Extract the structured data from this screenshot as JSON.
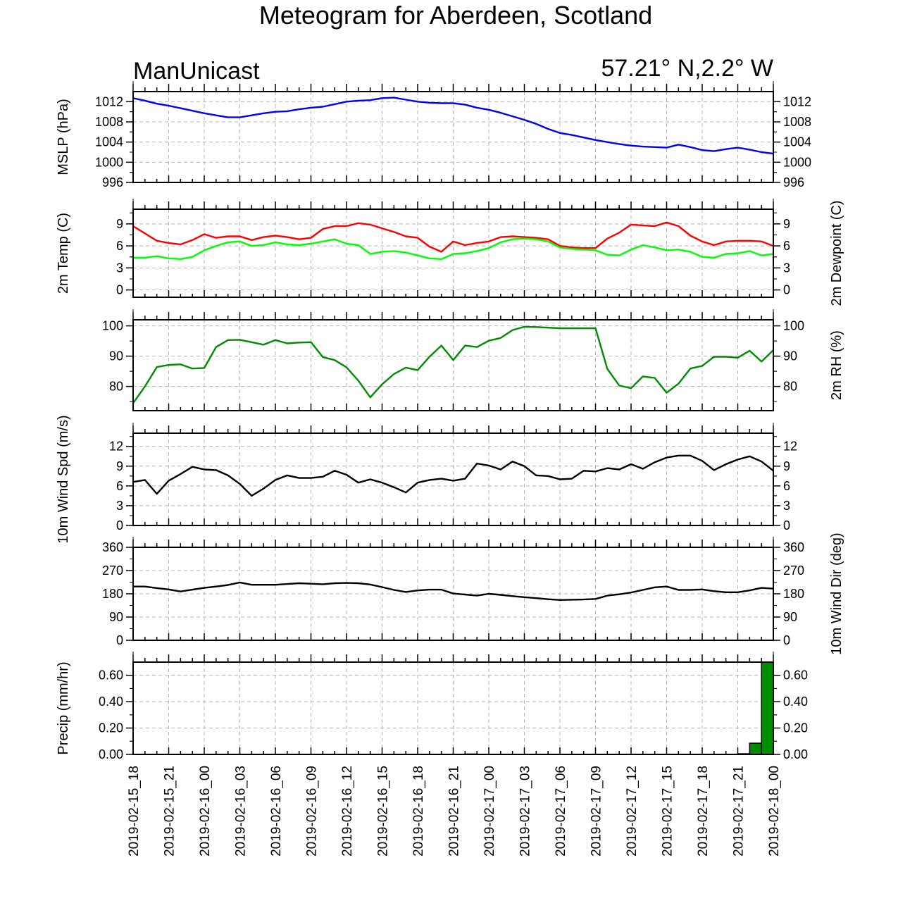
{
  "title": "Meteogram for Aberdeen, Scotland",
  "subtitle_left": "ManUnicast",
  "subtitle_right": "57.21° N,2.2° W",
  "x_tick_labels": [
    "2019-02-15_18",
    "2019-02-15_21",
    "2019-02-16_00",
    "2019-02-16_03",
    "2019-02-16_06",
    "2019-02-16_09",
    "2019-02-16_12",
    "2019-02-16_15",
    "2019-02-16_18",
    "2019-02-16_21",
    "2019-02-17_00",
    "2019-02-17_03",
    "2019-02-17_06",
    "2019-02-17_09",
    "2019-02-17_12",
    "2019-02-17_15",
    "2019-02-17_18",
    "2019-02-17_21",
    "2019-02-18_00"
  ],
  "colors": {
    "mslp": "#0000ff",
    "temp": "#ff0000",
    "dewpoint": "#00ff00",
    "rh": "#008c00",
    "wind": "#000000",
    "precip_fill": "#008c00",
    "grid": "#b4b4b4"
  },
  "chart_data": [
    {
      "type": "line",
      "ylabel": "MSLP (hPa)",
      "ylabel_right": "",
      "ylim": [
        996,
        1014
      ],
      "yticks": [
        996,
        1000,
        1004,
        1008,
        1012
      ],
      "grid": true,
      "x_hours": [
        0,
        1,
        2,
        3,
        4,
        5,
        6,
        7,
        8,
        9,
        10,
        11,
        12,
        13,
        14,
        15,
        16,
        17,
        18,
        19,
        20,
        21,
        22,
        23,
        24,
        25,
        26,
        27,
        28,
        29,
        30,
        31,
        32,
        33,
        34,
        35,
        36,
        37,
        38,
        39,
        40,
        41,
        42,
        43,
        44,
        45,
        46,
        47,
        48,
        49,
        50,
        51,
        52,
        53,
        54
      ],
      "series": [
        {
          "color": "mslp",
          "values": [
            1012.7,
            1012.2,
            1011.6,
            1011.2,
            1010.7,
            1010.2,
            1009.7,
            1009.3,
            1008.9,
            1008.9,
            1009.3,
            1009.7,
            1010.0,
            1010.1,
            1010.5,
            1010.8,
            1011.0,
            1011.5,
            1012.0,
            1012.2,
            1012.3,
            1012.7,
            1012.8,
            1012.4,
            1012.0,
            1011.8,
            1011.7,
            1011.7,
            1011.4,
            1010.8,
            1010.4,
            1009.8,
            1009.1,
            1008.4,
            1007.6,
            1006.6,
            1005.8,
            1005.4,
            1004.9,
            1004.4,
            1004.0,
            1003.6,
            1003.3,
            1003.1,
            1003.0,
            1002.9,
            1003.5,
            1003.0,
            1002.4,
            1002.2,
            1002.6,
            1002.9,
            1002.5,
            1002.0,
            1001.7
          ]
        }
      ]
    },
    {
      "type": "line",
      "ylabel": "2m Temp (C)",
      "ylabel_right": "2m Dewpoint (C)",
      "ylim": [
        -1,
        11
      ],
      "yticks": [
        0,
        3,
        6,
        9
      ],
      "grid": true,
      "x_hours": [
        0,
        1,
        2,
        3,
        4,
        5,
        6,
        7,
        8,
        9,
        10,
        11,
        12,
        13,
        14,
        15,
        16,
        17,
        18,
        19,
        20,
        21,
        22,
        23,
        24,
        25,
        26,
        27,
        28,
        29,
        30,
        31,
        32,
        33,
        34,
        35,
        36,
        37,
        38,
        39,
        40,
        41,
        42,
        43,
        44,
        45,
        46,
        47,
        48,
        49,
        50,
        51,
        52,
        53,
        54
      ],
      "series": [
        {
          "color": "temp",
          "values": [
            8.7,
            7.7,
            6.7,
            6.4,
            6.2,
            6.8,
            7.6,
            7.1,
            7.3,
            7.3,
            6.8,
            7.2,
            7.4,
            7.2,
            6.9,
            7.1,
            8.3,
            8.7,
            8.7,
            9.1,
            8.9,
            8.4,
            7.9,
            7.3,
            7.1,
            5.9,
            5.2,
            6.6,
            6.1,
            6.4,
            6.6,
            7.2,
            7.3,
            7.2,
            7.1,
            6.9,
            6.0,
            5.8,
            5.7,
            5.7,
            7.0,
            7.8,
            8.9,
            8.8,
            8.7,
            9.2,
            8.7,
            7.4,
            6.6,
            6.1,
            6.6,
            6.7,
            6.7,
            6.6,
            6.0
          ]
        },
        {
          "color": "dewpoint",
          "values": [
            4.4,
            4.4,
            4.6,
            4.3,
            4.2,
            4.5,
            5.4,
            6.0,
            6.5,
            6.6,
            6.0,
            6.1,
            6.5,
            6.2,
            6.1,
            6.3,
            6.6,
            6.9,
            6.3,
            6.1,
            4.9,
            5.2,
            5.3,
            5.1,
            4.7,
            4.3,
            4.2,
            4.9,
            5.0,
            5.3,
            5.7,
            6.5,
            6.9,
            7.0,
            6.9,
            6.6,
            5.8,
            5.6,
            5.5,
            5.4,
            4.8,
            4.7,
            5.5,
            6.1,
            5.8,
            5.4,
            5.5,
            5.2,
            4.5,
            4.4,
            4.9,
            5.0,
            5.3,
            4.7,
            4.9
          ]
        }
      ]
    },
    {
      "type": "line",
      "ylabel": "",
      "ylabel_right": "2m RH (%)",
      "ylim": [
        72,
        102
      ],
      "yticks": [
        80,
        90,
        100
      ],
      "grid": true,
      "x_hours": [
        0,
        1,
        2,
        3,
        4,
        5,
        6,
        7,
        8,
        9,
        10,
        11,
        12,
        13,
        14,
        15,
        16,
        17,
        18,
        19,
        20,
        21,
        22,
        23,
        24,
        25,
        26,
        27,
        28,
        29,
        30,
        31,
        32,
        33,
        34,
        35,
        36,
        37,
        38,
        39,
        40,
        41,
        42,
        43,
        44,
        45,
        46,
        47,
        48,
        49,
        50,
        51,
        52,
        53,
        54
      ],
      "series": [
        {
          "color": "rh",
          "values": [
            74.5,
            80.0,
            86.4,
            87.1,
            87.3,
            85.9,
            86.1,
            93.0,
            95.3,
            95.4,
            94.6,
            93.8,
            95.3,
            94.2,
            94.5,
            94.6,
            89.7,
            88.7,
            86.3,
            81.9,
            76.4,
            80.7,
            84.1,
            86.2,
            85.4,
            89.8,
            93.5,
            88.7,
            93.5,
            93.0,
            95.1,
            96.0,
            98.6,
            99.7,
            99.6,
            99.4,
            99.2,
            99.2,
            99.2,
            99.2,
            85.8,
            80.3,
            79.4,
            83.3,
            82.8,
            77.9,
            80.9,
            85.9,
            86.8,
            89.8,
            89.8,
            89.5,
            91.8,
            88.2,
            92.0
          ]
        }
      ]
    },
    {
      "type": "line",
      "ylabel": "10m Wind Spd (m/s)",
      "ylabel_right": "",
      "ylim": [
        0,
        14
      ],
      "yticks": [
        0,
        3,
        6,
        9,
        12
      ],
      "grid": true,
      "x_hours": [
        0,
        1,
        2,
        3,
        4,
        5,
        6,
        7,
        8,
        9,
        10,
        11,
        12,
        13,
        14,
        15,
        16,
        17,
        18,
        19,
        20,
        21,
        22,
        23,
        24,
        25,
        26,
        27,
        28,
        29,
        30,
        31,
        32,
        33,
        34,
        35,
        36,
        37,
        38,
        39,
        40,
        41,
        42,
        43,
        44,
        45,
        46,
        47,
        48,
        49,
        50,
        51,
        52,
        53,
        54
      ],
      "series": [
        {
          "color": "wind",
          "values": [
            6.6,
            6.9,
            4.8,
            6.8,
            7.8,
            8.9,
            8.5,
            8.4,
            7.6,
            6.3,
            4.5,
            5.6,
            6.9,
            7.6,
            7.2,
            7.2,
            7.4,
            8.3,
            7.7,
            6.5,
            7.0,
            6.5,
            5.8,
            5.0,
            6.5,
            6.9,
            7.1,
            6.8,
            7.1,
            9.4,
            9.1,
            8.5,
            9.7,
            9.0,
            7.6,
            7.5,
            7.0,
            7.1,
            8.3,
            8.2,
            8.7,
            8.5,
            9.3,
            8.6,
            9.6,
            10.3,
            10.6,
            10.6,
            9.8,
            8.4,
            9.3,
            10.0,
            10.5,
            9.7,
            8.3
          ]
        }
      ]
    },
    {
      "type": "line",
      "ylabel": "",
      "ylabel_right": "10m Wind Dir (deg)",
      "ylim": [
        0,
        360
      ],
      "yticks": [
        0,
        90,
        180,
        270,
        360
      ],
      "grid": true,
      "x_hours": [
        0,
        1,
        2,
        3,
        4,
        5,
        6,
        7,
        8,
        9,
        10,
        11,
        12,
        13,
        14,
        15,
        16,
        17,
        18,
        19,
        20,
        21,
        22,
        23,
        24,
        25,
        26,
        27,
        28,
        29,
        30,
        31,
        32,
        33,
        34,
        35,
        36,
        37,
        38,
        39,
        40,
        41,
        42,
        43,
        44,
        45,
        46,
        47,
        48,
        49,
        50,
        51,
        52,
        53,
        54
      ],
      "series": [
        {
          "color": "wind",
          "values": [
            208,
            208,
            202,
            197,
            189,
            196,
            203,
            208,
            214,
            224,
            215,
            215,
            215,
            218,
            221,
            219,
            217,
            221,
            222,
            221,
            216,
            206,
            195,
            187,
            193,
            196,
            196,
            181,
            177,
            173,
            180,
            176,
            171,
            167,
            163,
            159,
            156,
            157,
            158,
            160,
            173,
            178,
            185,
            195,
            205,
            208,
            195,
            195,
            197,
            190,
            186,
            186,
            193,
            203,
            200
          ]
        }
      ]
    },
    {
      "type": "bar",
      "ylabel": "Precip (mm/hr)",
      "ylabel_right": "",
      "ylim": [
        0,
        0.7
      ],
      "yticks": [
        "0.00",
        "0.20",
        "0.40",
        "0.60"
      ],
      "grid": true,
      "bars": [
        {
          "hour": 28,
          "value": 0.003
        },
        {
          "hour": 51,
          "value": 0.005
        },
        {
          "hour": 52,
          "value": 0.085
        },
        {
          "hour": 53,
          "value": 0.7
        }
      ]
    }
  ]
}
